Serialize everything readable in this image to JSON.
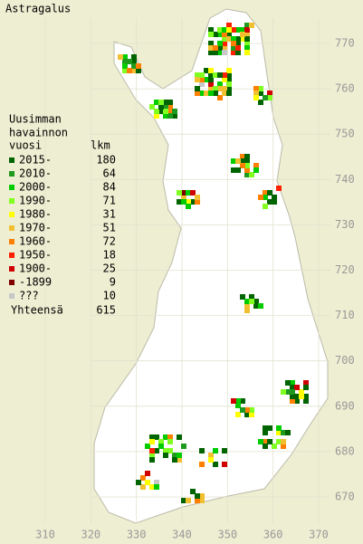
{
  "map": {
    "title": "Astragalus",
    "legend_title": [
      "Uusimman",
      "havainnon",
      "vuosi"
    ],
    "count_header": "lkm",
    "legend": [
      {
        "label": "2015-",
        "color": "#006400",
        "count": 180
      },
      {
        "label": "2010-",
        "color": "#1e9a1e",
        "count": 64
      },
      {
        "label": "2000-",
        "color": "#00cc00",
        "count": 84
      },
      {
        "label": "1990-",
        "color": "#80ff20",
        "count": 71
      },
      {
        "label": "1980-",
        "color": "#ffff00",
        "count": 31
      },
      {
        "label": "1970-",
        "color": "#f0c030",
        "count": 51
      },
      {
        "label": "1960-",
        "color": "#ff8000",
        "count": 72
      },
      {
        "label": "1950-",
        "color": "#ff2000",
        "count": 18
      },
      {
        "label": "1900-",
        "color": "#d00000",
        "count": 25
      },
      {
        "label": "-1899",
        "color": "#800000",
        "count": 9
      },
      {
        "label": "???",
        "color": "#c8c8c8",
        "count": 10
      }
    ],
    "total_label": "Yhteensä",
    "total": 615,
    "xticks": [
      310,
      320,
      330,
      340,
      350,
      360,
      370
    ],
    "yticks": [
      770,
      760,
      750,
      740,
      730,
      720,
      710,
      700,
      690,
      680,
      670
    ]
  }
}
